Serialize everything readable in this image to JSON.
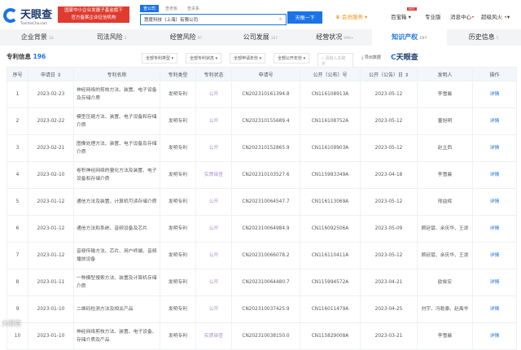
{
  "header": {
    "logo_text": "天眼查",
    "logo_sub": "TianYanCha.com",
    "banner_line1": "国家中小企业发展子基金旗下",
    "banner_line2": "官方备案企业征信机构",
    "search_tabs": [
      "查公司",
      "查老板",
      "查关系"
    ],
    "search_value": "慧度科技（上海）有限公司",
    "search_button": "天眼一下",
    "nav": [
      "会员服务",
      "百宝箱",
      "专业版",
      "消息中心",
      "超级风火"
    ],
    "hot_badge": "HOT"
  },
  "tabs": [
    {
      "label": "企业背景",
      "count": "18"
    },
    {
      "label": "司法风险",
      "count": "3"
    },
    {
      "label": "经营风险",
      "count": "97"
    },
    {
      "label": "公司发展",
      "count": "167"
    },
    {
      "label": "经营状况",
      "count": "999+"
    },
    {
      "label": "知识产权",
      "count": "197"
    },
    {
      "label": "历史信息",
      "count": "5"
    }
  ],
  "section": {
    "title": "专利信息",
    "count": "196",
    "filters": [
      "全部专利类型",
      "全部专利状态",
      "全部申请年份",
      "全部公开年份"
    ],
    "search_placeholder": "请输入关键字",
    "export": "导出数据",
    "brand": "天眼查"
  },
  "columns": [
    "序号",
    "申请日 ⇕",
    "专利名称",
    "专利类型",
    "专利状态",
    "申请号",
    "公开（公布）号",
    "公开（公告）日 ⇕",
    "发明人",
    "操作"
  ],
  "rows": [
    [
      "1",
      "2023-02-23",
      "神经网络的剪枝方法、装置、电子设备及存储介质",
      "发明专利",
      "公开",
      "CN202310161394.8",
      "CN116108913A",
      "2023-05-12",
      "李雪晨",
      "详情"
    ],
    [
      "2",
      "2023-02-22",
      "模型压缩方法、装置、电子设备和存储介质",
      "发明专利",
      "公开",
      "CN202310155689.4",
      "CN116108752A",
      "2023-05-12",
      "董旭明",
      "详情"
    ],
    [
      "3",
      "2023-02-21",
      "图像处理方法、装置、电子设备及存储介质",
      "发明专利",
      "公开",
      "CN202310152865.9",
      "CN116109903A",
      "2023-05-12",
      "赵立西",
      "详情"
    ],
    [
      "4",
      "2023-02-10",
      "卷积神经网络的量化方法及装置、电子设备和存储介质",
      "发明专利",
      "实质审查",
      "CN202310103527.6",
      "CN115983349A",
      "2023-04-18",
      "李雪晨",
      "详情"
    ],
    [
      "5",
      "2023-01-12",
      "通信方法及装置、计算机可读存储介质",
      "发明专利",
      "公开",
      "CN202310064547.7",
      "CN116113069A",
      "2023-05-12",
      "邢益辉",
      "详情"
    ],
    [
      "6",
      "2023-01-12",
      "通信方法和系统、音频设备及芯片",
      "发明专利",
      "公开",
      "CN202310064984.9",
      "CN116092506A",
      "2023-05-09",
      "顾廷譬、余庆华、王泼",
      "详情"
    ],
    [
      "7",
      "2023-01-12",
      "音频传输方法、芯片、用户终端、音频播放设备",
      "发明专利",
      "公开",
      "CN202310066078.2",
      "CN116110411A",
      "2023-05-12",
      "顾廷譬、余庆华、王泼",
      "详情"
    ],
    [
      "8",
      "2023-01-11",
      "一种模型搜索方法、装置及计算机存储介质",
      "发明专利",
      "公开",
      "CN202310064480.7",
      "CN115994572A",
      "2023-04-21",
      "欧俊宏",
      "详情"
    ],
    [
      "9",
      "2023-01-10",
      "二维码检测方法及相关产品",
      "发明专利",
      "公开",
      "CN202310037425.9",
      "CN116011479A",
      "2023-04-25",
      "刘宇、冯乾泰、赵禹华",
      "详情"
    ],
    [
      "10",
      "2023-01-10",
      "神经网络剪枝方法、装置、电子设备、存储介质及产品",
      "发明专利",
      "实质审查",
      "CN202310038150.0",
      "CN115829008A",
      "2023-03-21",
      "李雪晨",
      "详情"
    ]
  ],
  "watermark": "大眼查"
}
